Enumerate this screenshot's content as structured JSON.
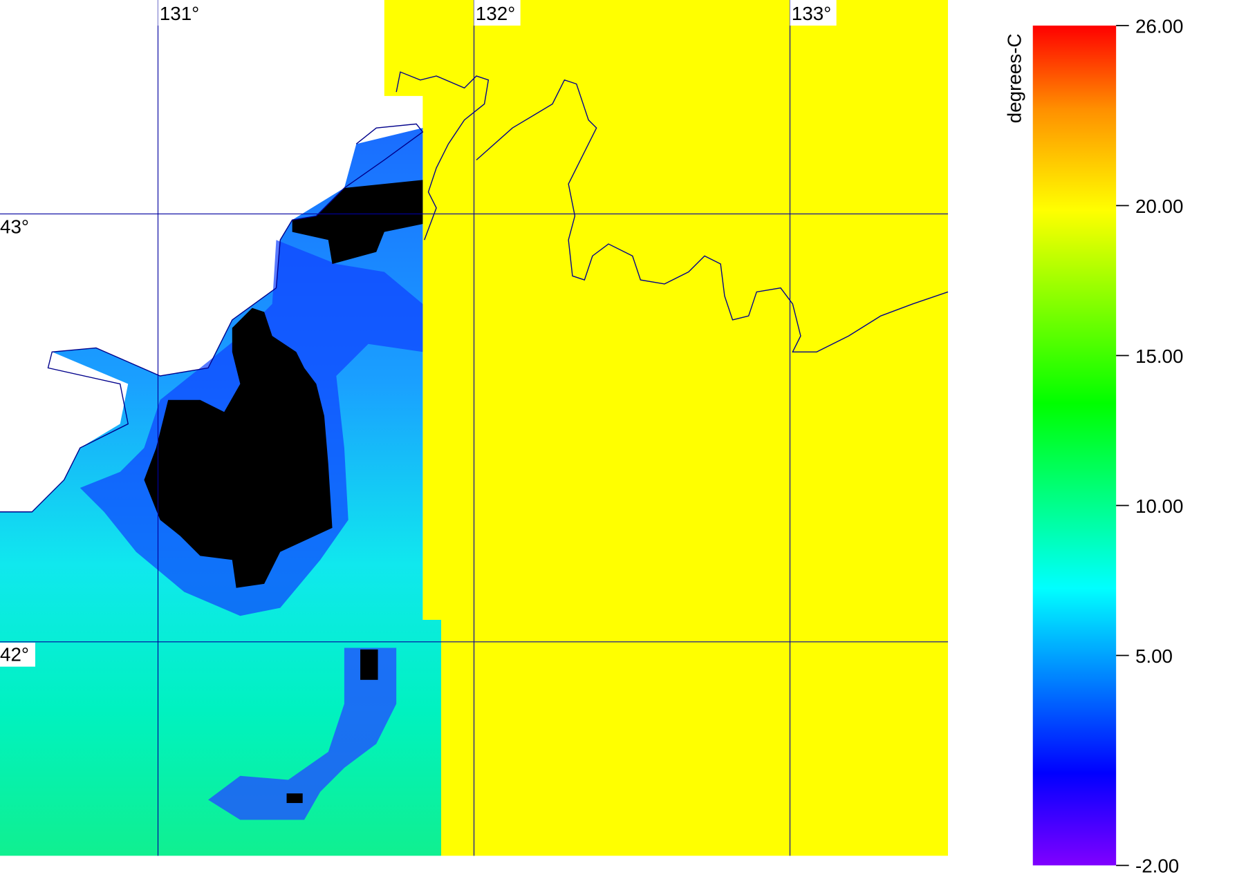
{
  "map": {
    "lonlim": [
      130.5,
      133.5
    ],
    "latlim": [
      41.5,
      43.5
    ],
    "lon_ticks": [
      {
        "value": 131,
        "label": "131°"
      },
      {
        "value": 132,
        "label": "132°"
      },
      {
        "value": 133,
        "label": "133°"
      }
    ],
    "lat_ticks": [
      {
        "value": 43,
        "label": "43°"
      },
      {
        "value": 42,
        "label": "42°"
      }
    ]
  },
  "colorbar": {
    "label": "degrees-C",
    "lim": [
      -2,
      26
    ],
    "ticks": [
      {
        "value": 26,
        "label": "26.00"
      },
      {
        "value": 20,
        "label": "20.00"
      },
      {
        "value": 15,
        "label": "15.00"
      },
      {
        "value": 10,
        "label": "10.00"
      },
      {
        "value": 5,
        "label": "5.00"
      },
      {
        "value": -2,
        "label": "-2.00"
      }
    ]
  }
}
